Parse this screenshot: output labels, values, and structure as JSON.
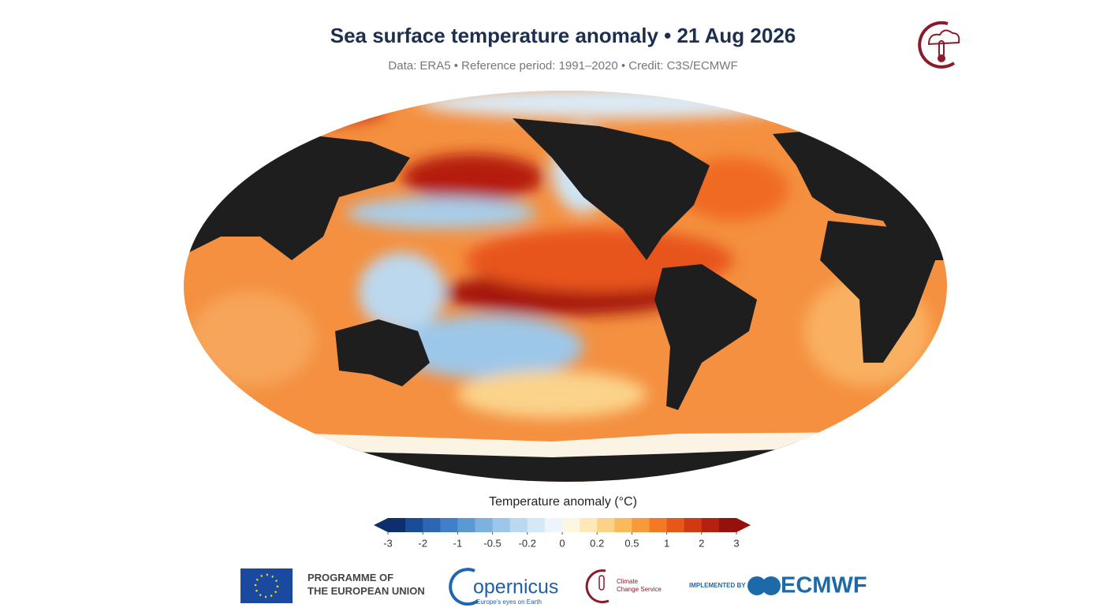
{
  "header": {
    "title": "Sea surface temperature anomaly • 21 Aug 2026",
    "subtitle": "Data: ERA5 • Reference period: 1991–2020 • Credit: C3S/ECMWF"
  },
  "colorbar": {
    "title": "Temperature anomaly (°C)",
    "ticks": [
      -3,
      -2,
      -1,
      -0.5,
      -0.2,
      0,
      0.2,
      0.5,
      1,
      2,
      3
    ],
    "colors": [
      "#0d2f6e",
      "#1b4c97",
      "#2c66b4",
      "#3f80c8",
      "#5b99d5",
      "#7db1df",
      "#9dc7e9",
      "#bad9f0",
      "#d5e8f5",
      "#edf5fa",
      "#fdf6e2",
      "#fde8b6",
      "#fcd386",
      "#fbb95a",
      "#f99a3a",
      "#f47924",
      "#e75818",
      "#d23912",
      "#b7200e",
      "#96100c"
    ]
  },
  "footer": {
    "eu": "PROGRAMME OF\nTHE EUROPEAN UNION",
    "copernicus": "opernicus",
    "copernicus_tagline": "Europe's eyes on Earth",
    "c3s": "Climate\nChange Service",
    "implemented_by": "IMPLEMENTED BY",
    "ecmwf": "ECMWF"
  }
}
